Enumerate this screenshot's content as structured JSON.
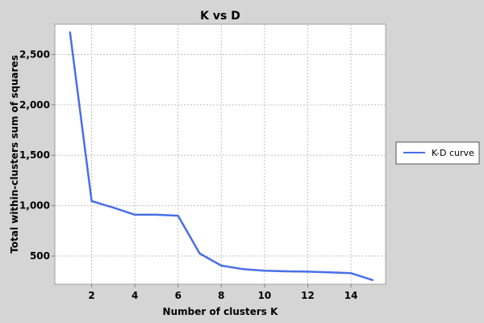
{
  "chart_data": {
    "type": "line",
    "title": "K vs D",
    "xlabel": "Number of clusters K",
    "ylabel": "Total within-clusters sum of squares",
    "xlim": [
      0.3,
      15.6
    ],
    "ylim": [
      220,
      2800
    ],
    "x_ticks": [
      2,
      4,
      6,
      8,
      10,
      12,
      14
    ],
    "x_tick_labels": [
      "2",
      "4",
      "6",
      "8",
      "10",
      "12",
      "14"
    ],
    "y_ticks": [
      500,
      1000,
      1500,
      2000,
      2500
    ],
    "y_tick_labels": [
      "500",
      "1,000",
      "1,500",
      "2,000",
      "2,500"
    ],
    "grid": true,
    "legend_position": "right",
    "series": [
      {
        "name": "K-D curve",
        "color": "#4a6fe6",
        "x": [
          1,
          2,
          3,
          4,
          5,
          6,
          7,
          8,
          9,
          10,
          11,
          12,
          13,
          14,
          15
        ],
        "y": [
          2720,
          1045,
          980,
          910,
          910,
          900,
          525,
          405,
          370,
          355,
          348,
          345,
          338,
          330,
          262
        ]
      }
    ]
  }
}
